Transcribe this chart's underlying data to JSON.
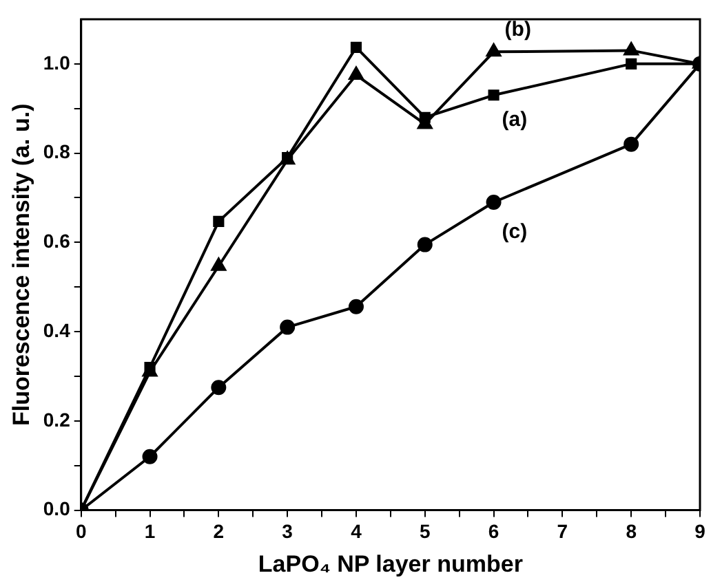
{
  "chart_data": {
    "type": "line",
    "xlabel": "LaPO₄ NP layer number",
    "ylabel": "Fluorescence intensity (a. u.)",
    "x": [
      0,
      1,
      2,
      3,
      4,
      5,
      6,
      8,
      9
    ],
    "series": [
      {
        "name": "(a)",
        "color": "#000000",
        "marker": "square",
        "values": [
          0,
          0.32,
          0.647,
          0.79,
          1.037,
          0.88,
          0.93,
          1.0,
          1.0
        ]
      },
      {
        "name": "(b)",
        "color": "#000000",
        "marker": "triangle",
        "values": [
          0,
          0.31,
          0.547,
          0.785,
          0.975,
          0.865,
          1.027,
          1.03,
          1.0
        ]
      },
      {
        "name": "(c)",
        "color": "#000000",
        "marker": "circle",
        "values": [
          0,
          0.12,
          0.275,
          0.41,
          0.456,
          0.595,
          0.69,
          0.82,
          1.0
        ]
      }
    ],
    "xlim": [
      0,
      9
    ],
    "xticks": [
      0,
      {
        "value": 0.5,
        "label": null
      },
      1,
      {
        "value": 1.5,
        "label": null
      },
      2,
      {
        "value": 2.5,
        "label": null
      },
      3,
      {
        "value": 3.5,
        "label": null
      },
      4,
      {
        "value": 4.5,
        "label": null
      },
      5,
      {
        "value": 5.5,
        "label": null
      },
      6,
      {
        "value": 6.5,
        "label": null
      },
      7,
      {
        "value": 7.5,
        "label": null
      },
      8,
      {
        "value": 8.5,
        "label": null
      },
      9
    ],
    "ylim": [
      0,
      1.1
    ],
    "yticks": [
      {
        "value": 0,
        "label": "0.0"
      },
      {
        "value": 0.1,
        "label": null
      },
      {
        "value": 0.2,
        "label": "0.2"
      },
      {
        "value": 0.3,
        "label": null
      },
      {
        "value": 0.4,
        "label": "0.4"
      },
      {
        "value": 0.5,
        "label": null
      },
      {
        "value": 0.6,
        "label": "0.6"
      },
      {
        "value": 0.7,
        "label": null
      },
      {
        "value": 0.8,
        "label": "0.8"
      },
      {
        "value": 0.9,
        "label": null
      },
      {
        "value": 1.0,
        "label": "1.0"
      }
    ],
    "grid": false,
    "legend": false,
    "line_style": "solid"
  }
}
